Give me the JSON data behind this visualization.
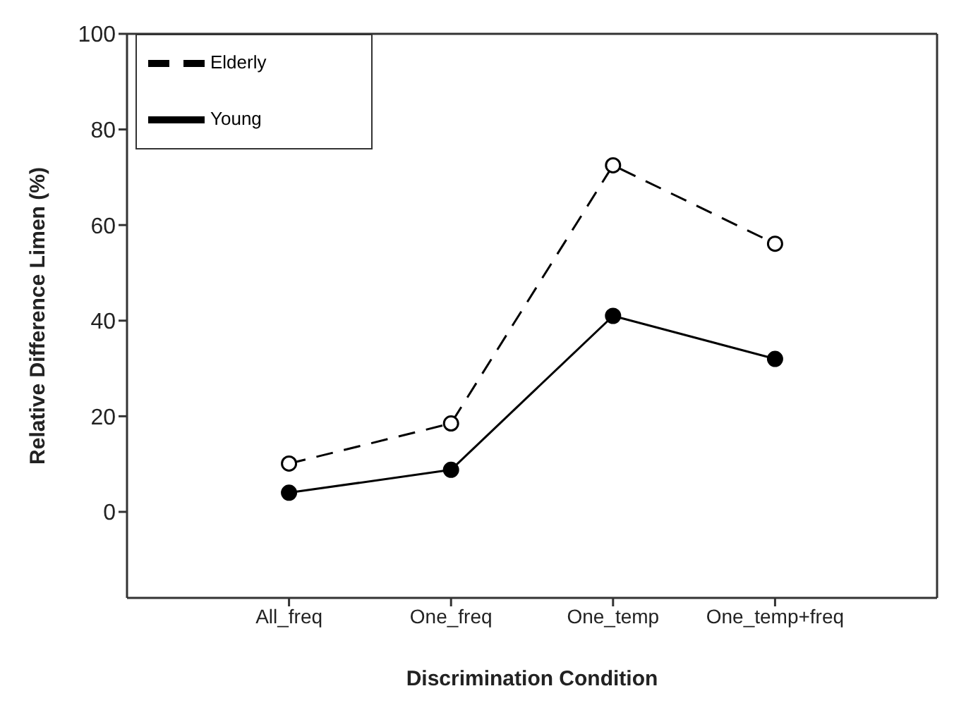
{
  "chart_data": {
    "type": "line",
    "xlabel": "Discrimination Condition",
    "ylabel": "Relative Difference Limen (%)",
    "categories": [
      "All_freq",
      "One_freq",
      "One_temp",
      "One_temp+freq"
    ],
    "series": [
      {
        "name": "Young",
        "color": "#000000",
        "values": [
          4.0,
          8.8,
          41.0,
          32.0
        ],
        "marker": "circle",
        "line_style": "solid"
      },
      {
        "name": "Elderly",
        "color": "#000000",
        "values": [
          10.1,
          18.5,
          72.5,
          56.1
        ],
        "marker": "circle",
        "line_style": "dashed"
      }
    ],
    "ylim": [
      -18,
      100
    ],
    "yticks": [
      0,
      20,
      40,
      60,
      80,
      100
    ],
    "grid": false,
    "legend": "top left"
  }
}
